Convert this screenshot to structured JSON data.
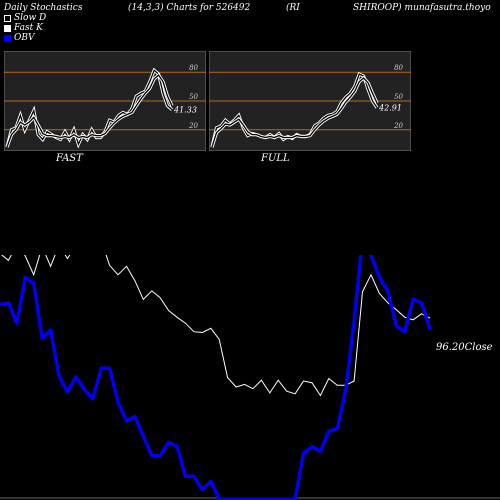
{
  "header": {
    "left": "Daily Stochastics",
    "params": "(14,3,3) Charts for 526492",
    "mid": "(RI",
    "right": "SHIROOP) munafasutra.thoyo"
  },
  "legend": [
    {
      "label": "Slow  D",
      "color": "#000000"
    },
    {
      "label": "Fast K",
      "color": "#ffffff"
    },
    {
      "label": "OBV",
      "color": "#0000ff"
    }
  ],
  "colors": {
    "gridline": "#b06c1c",
    "obv": "#0000ee",
    "price": "#ffffff",
    "panel_bg": "#222222"
  },
  "chart_data": [
    {
      "type": "line",
      "name": "FAST",
      "ylim": [
        0,
        100
      ],
      "yticks": [
        20,
        50,
        80
      ],
      "last_value_label": "41.33",
      "series": [
        {
          "name": "Fast K",
          "values": [
            2,
            20,
            22,
            35,
            20,
            30,
            40,
            15,
            10,
            18,
            15,
            12,
            10,
            18,
            10,
            20,
            5,
            15,
            10,
            20,
            12,
            12,
            18,
            30,
            28,
            35,
            38,
            36,
            42,
            55,
            58,
            60,
            70,
            82,
            78,
            58,
            45,
            41
          ]
        },
        {
          "name": "Slow  D",
          "values": [
            2,
            15,
            20,
            28,
            25,
            28,
            33,
            25,
            16,
            14,
            14,
            13,
            12,
            13,
            12,
            15,
            12,
            13,
            12,
            15,
            14,
            14,
            16,
            22,
            27,
            31,
            34,
            36,
            38,
            45,
            52,
            58,
            63,
            73,
            77,
            70,
            55,
            45
          ]
        }
      ]
    },
    {
      "type": "line",
      "name": "FULL",
      "ylim": [
        0,
        100
      ],
      "yticks": [
        20,
        50,
        80
      ],
      "last_value_label": "42.91",
      "series": [
        {
          "name": "Fast K",
          "values": [
            2,
            22,
            24,
            30,
            26,
            30,
            35,
            22,
            14,
            16,
            15,
            13,
            12,
            15,
            12,
            16,
            10,
            13,
            11,
            15,
            13,
            13,
            15,
            24,
            27,
            32,
            35,
            36,
            39,
            48,
            54,
            58,
            65,
            78,
            76,
            62,
            50,
            43
          ]
        },
        {
          "name": "Slow  D",
          "values": [
            2,
            17,
            21,
            26,
            25,
            28,
            31,
            25,
            18,
            15,
            15,
            13,
            12,
            13,
            12,
            14,
            12,
            12,
            12,
            14,
            13,
            13,
            14,
            20,
            25,
            29,
            32,
            34,
            36,
            42,
            49,
            54,
            60,
            70,
            74,
            69,
            58,
            48
          ]
        }
      ]
    },
    {
      "type": "line",
      "name": "Price and OBV",
      "price_label": "96.20",
      "price_label_suffix": "Close",
      "series": [
        {
          "name": "Close",
          "values": [
            98,
            97.2,
            99,
            97.7,
            95.5,
            98.8,
            96.5,
            99,
            97.4,
            99,
            98.7,
            98.3,
            99.6,
            96.6,
            95.5,
            96.5,
            94.8,
            92.6,
            93.6,
            92.8,
            91.3,
            90.5,
            89.8,
            88.8,
            88.7,
            89.2,
            87.9,
            83.4,
            82.3,
            82.6,
            82.1,
            83.1,
            81.6,
            83.1,
            81.8,
            81.5,
            83,
            82.8,
            81.3,
            83.3,
            82.5,
            82.5,
            83,
            93.5,
            95.5,
            93.3,
            92.2,
            91.4,
            90.5,
            90.2,
            90.9,
            90.4
          ]
        },
        {
          "name": "OBV",
          "values": [
            92,
            92.2,
            89.8,
            95.2,
            94.5,
            88,
            89,
            83.6,
            81.7,
            83.5,
            82,
            80.9,
            84.5,
            84.5,
            80.5,
            78.3,
            78.8,
            76.5,
            74.2,
            74.2,
            75.8,
            75.3,
            71.8,
            71.8,
            70.2,
            71.2,
            69.1,
            69.1,
            69.1,
            69.1,
            69.1,
            69.1,
            69.1,
            69.1,
            69.1,
            69.1,
            74.5,
            75.3,
            74.7,
            77.1,
            77.4,
            81.9,
            90,
            99.8,
            97.8,
            95.2,
            93.6,
            89.5,
            88.8,
            92.6,
            92.2,
            89.1
          ]
        }
      ]
    }
  ]
}
